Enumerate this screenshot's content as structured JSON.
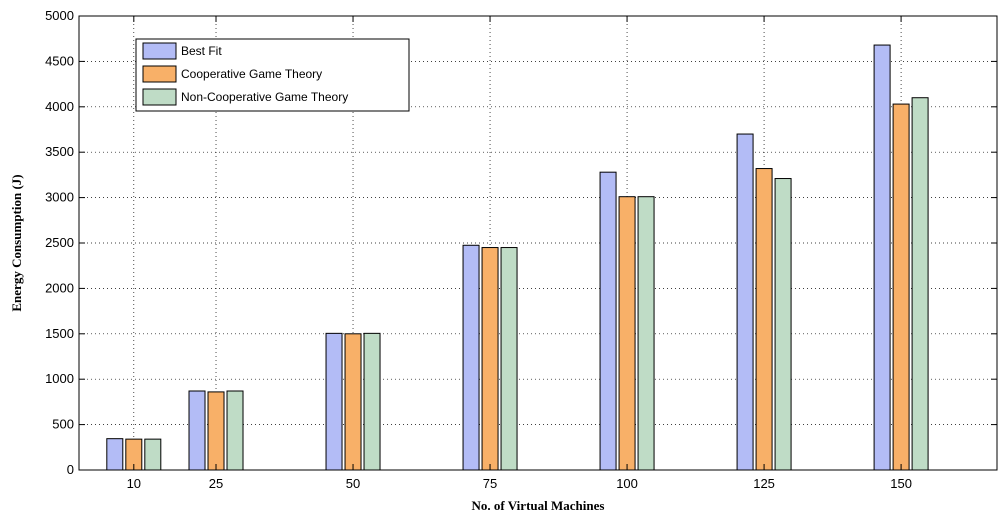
{
  "chart_data": {
    "type": "bar",
    "title": "",
    "xlabel": "No. of Virtual Machines",
    "ylabel": "Energy Consumption (J)",
    "x": [
      10,
      25,
      50,
      75,
      100,
      125,
      150
    ],
    "categories": [
      "10",
      "25",
      "50",
      "75",
      "100",
      "125",
      "150"
    ],
    "xlim": [
      0,
      167.5
    ],
    "ylim": [
      0,
      5000
    ],
    "yticks": [
      0,
      500,
      1000,
      1500,
      2000,
      2500,
      3000,
      3500,
      4000,
      4500,
      5000
    ],
    "grid": true,
    "legend_position": "top-left",
    "series": [
      {
        "name": "Best Fit",
        "color": "#b3bcf6",
        "values": [
          345,
          870,
          1505,
          2475,
          3280,
          3700,
          4680
        ]
      },
      {
        "name": "Cooperative Game Theory",
        "color": "#f8b068",
        "values": [
          340,
          860,
          1500,
          2450,
          3010,
          3320,
          4030
        ]
      },
      {
        "name": "Non-Cooperative Game Theory",
        "color": "#bfdcc6",
        "values": [
          340,
          870,
          1505,
          2450,
          3010,
          3210,
          4100
        ]
      }
    ]
  }
}
